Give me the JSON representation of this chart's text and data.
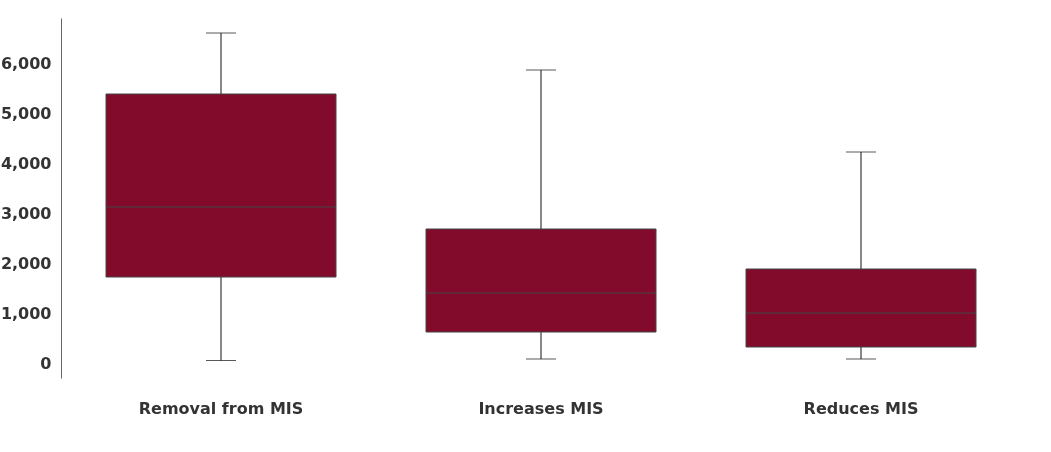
{
  "chart_data": {
    "type": "box",
    "categories": [
      "Removal from MIS",
      "Increases MIS",
      "Reduces MIS"
    ],
    "color": "#820a2a",
    "boxes": [
      {
        "low": 50,
        "q1": 1720,
        "median": 3120,
        "q3": 5380,
        "high": 6600
      },
      {
        "low": 80,
        "q1": 620,
        "median": 1400,
        "q3": 2680,
        "high": 5860
      },
      {
        "low": 80,
        "q1": 320,
        "median": 1000,
        "q3": 1880,
        "high": 4220
      }
    ],
    "ylim": [
      -300,
      6900
    ],
    "yticks": [
      0,
      {
        "value": 1000,
        "label": "1,000"
      },
      {
        "value": 2000,
        "label": "2,000"
      },
      {
        "value": 3000,
        "label": "3,000"
      },
      {
        "value": 4000,
        "label": "4,000"
      },
      {
        "value": 5000,
        "label": "5,000"
      },
      {
        "value": 6000,
        "label": "6,000"
      }
    ],
    "grid": false
  }
}
